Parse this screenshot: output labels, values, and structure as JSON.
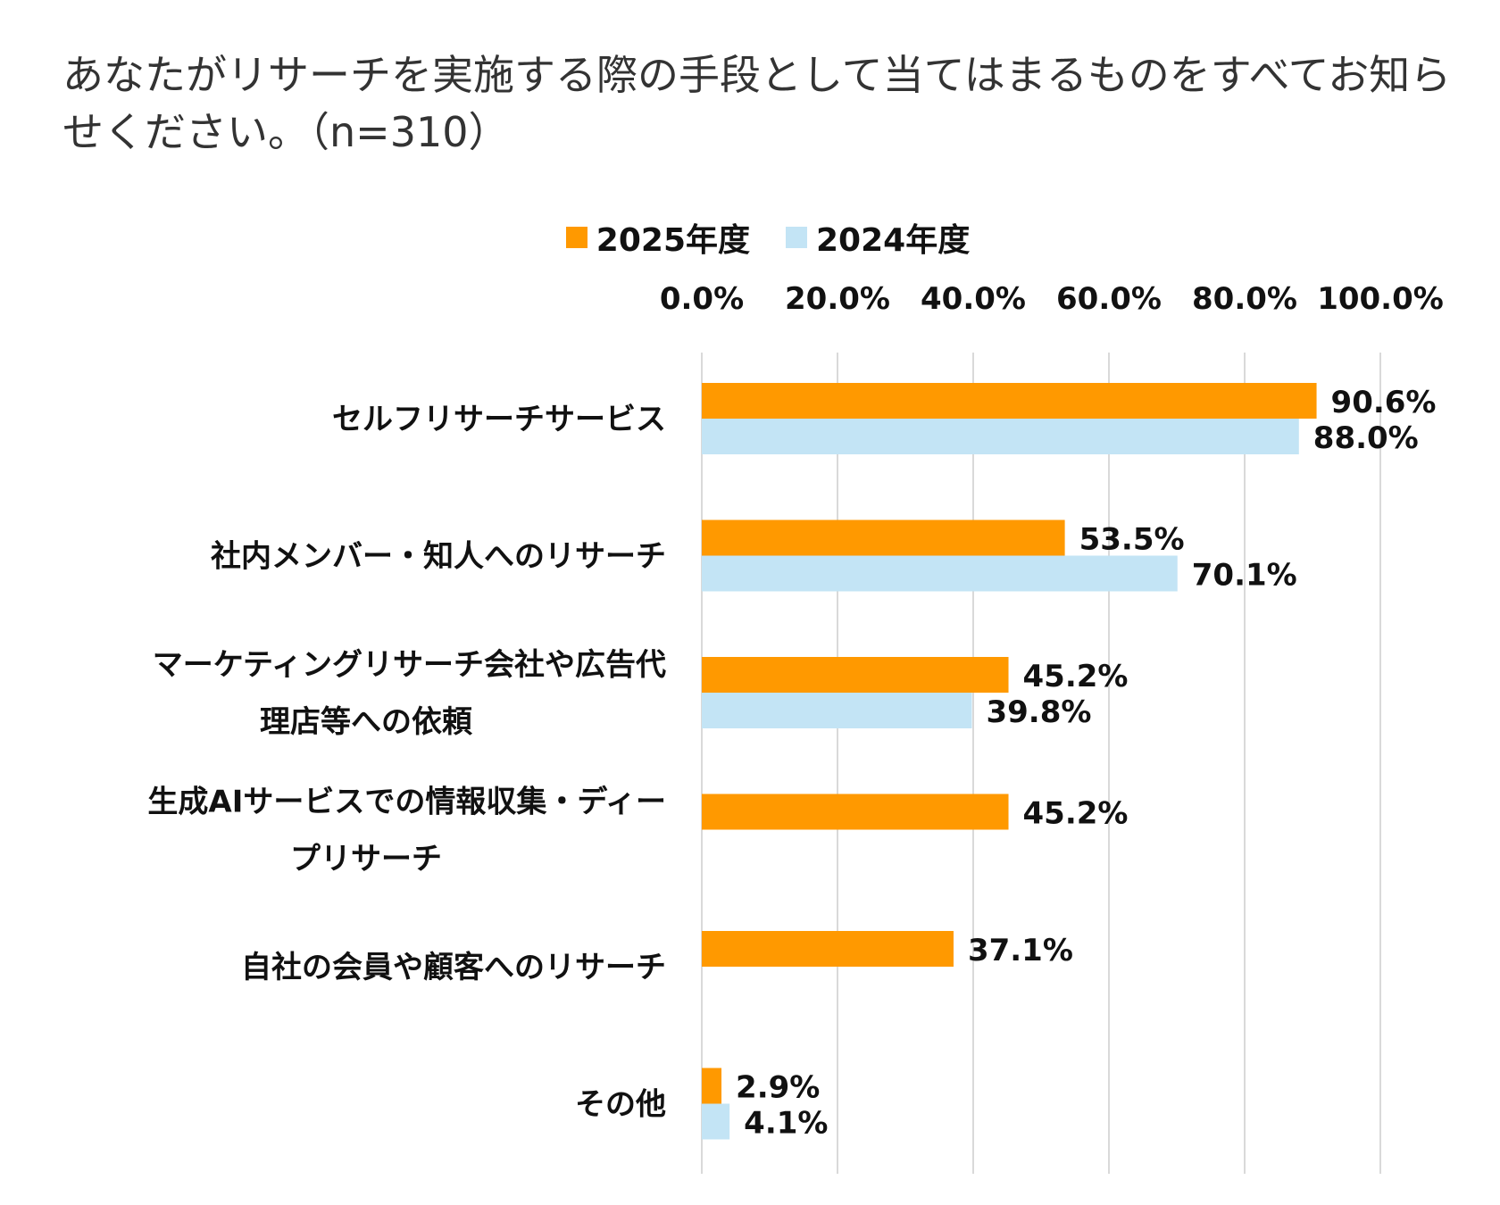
{
  "chart_data": {
    "type": "bar",
    "orientation": "horizontal",
    "title": "あなたがリサーチを実施する際の手段として当てはまるものをすべてお知らせください。（n=310）",
    "categories": [
      [
        "セルフリサーチサービス"
      ],
      [
        "社内メンバー・知人へのリサーチ"
      ],
      [
        "マーケティングリサーチ会社や広告代",
        "理店等への依頼"
      ],
      [
        "生成AIサービスでの情報収集・ディー",
        "プリサーチ"
      ],
      [
        "自社の会員や顧客へのリサーチ"
      ],
      [
        "その他"
      ]
    ],
    "series": [
      {
        "name": "2025年度",
        "color": "#FF9900",
        "values": [
          90.6,
          53.5,
          45.2,
          45.2,
          37.1,
          2.9
        ],
        "labels": [
          "90.6%",
          "53.5%",
          "45.2%",
          "45.2%",
          "37.1%",
          "2.9%"
        ]
      },
      {
        "name": "2024年度",
        "color": "#C3E4F5",
        "values": [
          88.0,
          70.1,
          39.8,
          null,
          null,
          4.1
        ],
        "labels": [
          "88.0%",
          "70.1%",
          "39.8%",
          null,
          null,
          "4.1%"
        ]
      }
    ],
    "xlim": [
      0,
      100
    ],
    "xticks": [
      "0.0%",
      "20.0%",
      "40.0%",
      "60.0%",
      "80.0%",
      "100.0%"
    ],
    "xtick_values": [
      0,
      20,
      40,
      60,
      80,
      100
    ],
    "grid": true,
    "legend": "top-center",
    "grid_color": "#D9D9D9"
  }
}
